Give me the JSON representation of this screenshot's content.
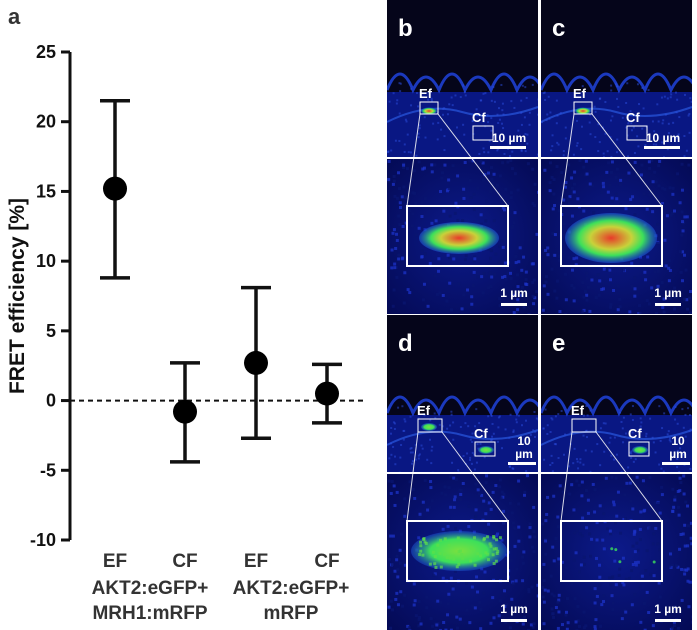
{
  "panel_a": {
    "letter": "a",
    "chart_data": {
      "type": "scatter",
      "ylabel": "FRET efficiency [%]",
      "ylim": [
        -10,
        25
      ],
      "yticks": [
        25,
        20,
        15,
        10,
        5,
        0,
        -5,
        -10
      ],
      "ytick_labels": [
        "25",
        "20",
        "15",
        "10",
        "5",
        "0",
        "-5",
        "-10"
      ],
      "reference_line": {
        "y": 0,
        "style": "dashed"
      },
      "categories": [
        "EF",
        "CF",
        "EF",
        "CF"
      ],
      "points": [
        {
          "category": "EF",
          "mean": 15.2,
          "lower": 8.8,
          "upper": 21.5
        },
        {
          "category": "CF",
          "mean": -0.8,
          "lower": -4.4,
          "upper": 2.7
        },
        {
          "category": "EF",
          "mean": 2.7,
          "lower": -2.7,
          "upper": 8.1
        },
        {
          "category": "CF",
          "mean": 0.5,
          "lower": -1.6,
          "upper": 2.6
        }
      ],
      "groups": [
        {
          "line1": "AKT2:eGFP+",
          "line2": "MRH1:mRFP"
        },
        {
          "line1": "AKT2:eGFP+",
          "line2": "mRFP"
        }
      ]
    }
  },
  "micrographs": [
    {
      "letter": "b",
      "ef_label": "Ef",
      "cf_label": "Cf",
      "scale_top": "10 µm",
      "scale_bottom": "1 µm",
      "signal": "strong-red"
    },
    {
      "letter": "c",
      "ef_label": "Ef",
      "cf_label": "Cf",
      "scale_top": "10 µm",
      "scale_bottom": "1 µm",
      "signal": "strong-red-large"
    },
    {
      "letter": "d",
      "ef_label": "Ef",
      "cf_label": "Cf",
      "scale_top": "10 µm",
      "scale_bottom": "1 µm",
      "signal": "green"
    },
    {
      "letter": "e",
      "ef_label": "Ef",
      "cf_label": "Cf",
      "scale_top": "10 µm",
      "scale_bottom": "1 µm",
      "signal": "none"
    }
  ],
  "colors": {
    "background_dark": "#05051a",
    "tissue_blue": "#1e3fd0",
    "fluor_green": "#3ce05a",
    "fluor_red": "#e83a2a",
    "text_dark": "#333333"
  }
}
